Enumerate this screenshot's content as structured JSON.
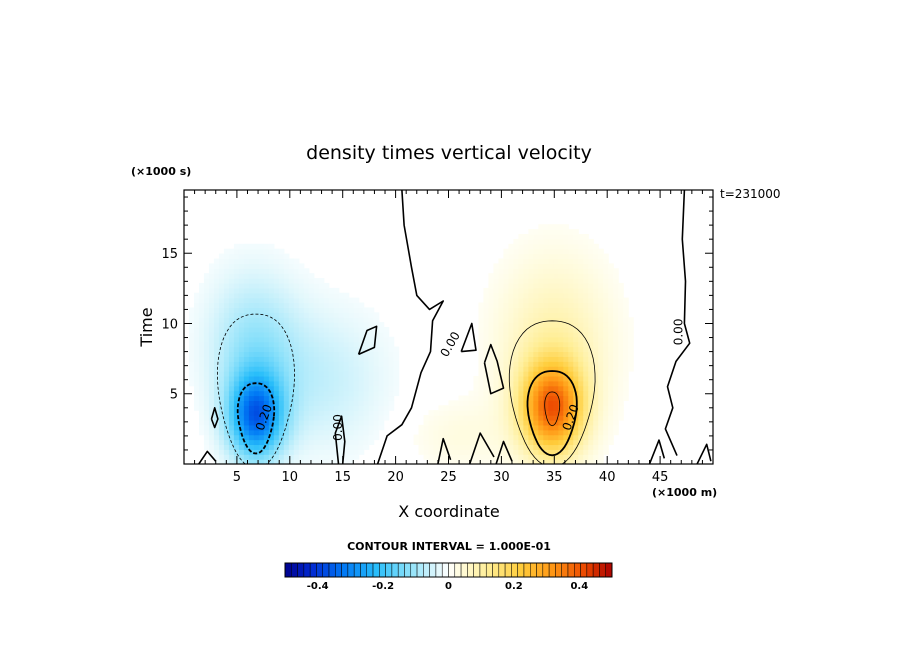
{
  "chart_data": {
    "type": "heatmap",
    "title": "density times vertical velocity",
    "xlabel": "X coordinate",
    "ylabel": "Time",
    "x_unit": "(×1000 m)",
    "y_unit": "(×1000 s)",
    "time_label": "t=231000",
    "xlim": [
      0,
      50
    ],
    "ylim": [
      0,
      19.5
    ],
    "x_ticks": [
      5,
      10,
      15,
      20,
      25,
      30,
      35,
      40,
      45
    ],
    "x_tick_labels": [
      "5",
      "10",
      "15",
      "20",
      "25",
      "30",
      "35",
      "40",
      "45"
    ],
    "y_ticks": [
      5,
      10,
      15
    ],
    "y_tick_labels": [
      "5",
      "10",
      "15"
    ],
    "contour_interval_text": "CONTOUR INTERVAL = 1.000E-01",
    "contour_labels": [
      {
        "text": "0.20",
        "x": 7.6,
        "y": 3.3,
        "angle": -70
      },
      {
        "text": "0.00",
        "x": 14.6,
        "y": 2.6,
        "angle": -90
      },
      {
        "text": "0.00",
        "x": 25.2,
        "y": 8.5,
        "angle": -60
      },
      {
        "text": "0.20",
        "x": 36.6,
        "y": 3.3,
        "angle": -70
      },
      {
        "text": "0.00",
        "x": 46.8,
        "y": 9.4,
        "angle": -90
      }
    ],
    "field_features": [
      {
        "name": "negative-core",
        "x": 6.8,
        "y": 3.4,
        "value": -0.32
      },
      {
        "name": "positive-core",
        "x": 34.8,
        "y": 4.0,
        "value": 0.36
      }
    ],
    "colorbar": {
      "min": -0.5,
      "max": 0.5,
      "ticks": [
        -0.4,
        -0.2,
        0,
        0.2,
        0.4
      ],
      "tick_labels": [
        "-0.4",
        "-0.2",
        "0",
        "0.2",
        "0.4"
      ]
    },
    "grid": false,
    "legend": "colorbar-bottom"
  }
}
